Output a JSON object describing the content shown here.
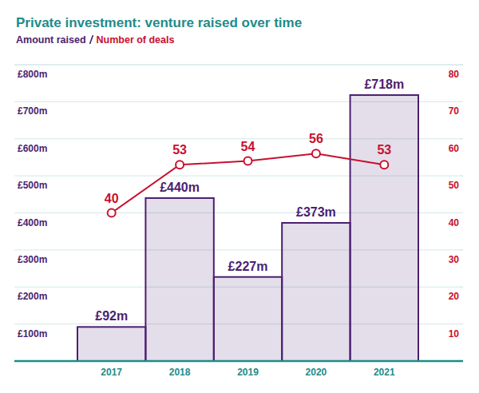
{
  "chart_data": {
    "type": "bar",
    "title": "Private investment: venture raised over time",
    "categories": [
      "2017",
      "2018",
      "2019",
      "2020",
      "2021"
    ],
    "series": [
      {
        "name": "Amount raised",
        "type": "bar",
        "color": "#4b1f6f",
        "values": [
          92,
          440,
          227,
          373,
          718
        ],
        "value_labels": [
          "£92m",
          "£440m",
          "£227m",
          "£373m",
          "£718m"
        ]
      },
      {
        "name": "Number of deals",
        "type": "line",
        "axis": "y2",
        "color": "#c8102e",
        "marker": "circle",
        "values": [
          40,
          53,
          54,
          56,
          53
        ]
      }
    ],
    "ylim": [
      0,
      800
    ],
    "yticks": [
      {
        "value": 100,
        "label": "£100m"
      },
      {
        "value": 200,
        "label": "£200m"
      },
      {
        "value": 300,
        "label": "£300m"
      },
      {
        "value": 400,
        "label": "£400m"
      },
      {
        "value": 500,
        "label": "£500m"
      },
      {
        "value": 600,
        "label": "£600m"
      },
      {
        "value": 700,
        "label": "£700m"
      },
      {
        "value": 800,
        "label": "£800m"
      }
    ],
    "y2lim": [
      0,
      80
    ],
    "y2ticks": [
      10,
      20,
      30,
      40,
      50,
      60,
      70,
      80
    ],
    "grid": true,
    "data_labels": true
  }
}
